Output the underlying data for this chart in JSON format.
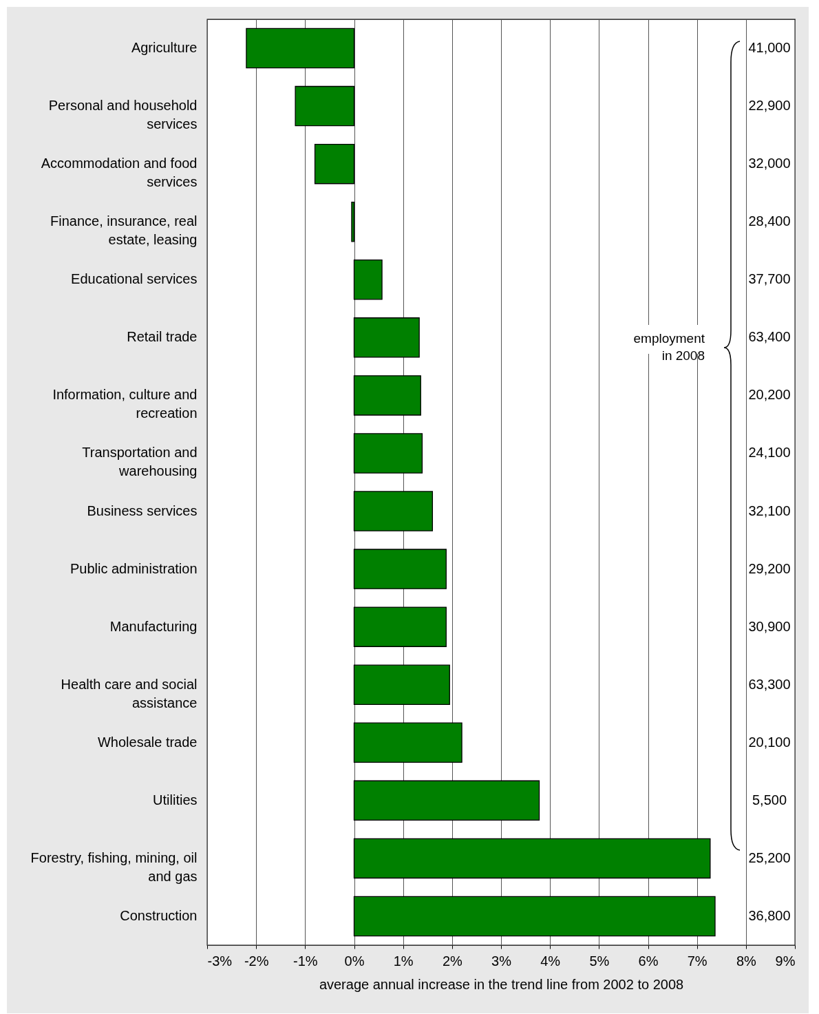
{
  "chart_data": {
    "type": "bar",
    "orientation": "horizontal",
    "xlabel": "average annual increase in the trend line from 2002 to 2008",
    "categories": [
      "Agriculture",
      "Personal and household services",
      "Accommodation and food services",
      "Finance, insurance, real estate, leasing",
      "Educational services",
      "Retail trade",
      "Information, culture and recreation",
      "Transportation and warehousing",
      "Business services",
      "Public administration",
      "Manufacturing",
      "Health care and social assistance",
      "Wholesale trade",
      "Utilities",
      "Forestry, fishing, mining, oil and gas",
      "Construction"
    ],
    "values": [
      -2.2,
      -1.2,
      -0.8,
      -0.05,
      0.57,
      1.33,
      1.36,
      1.39,
      1.6,
      1.88,
      1.88,
      1.95,
      2.2,
      3.78,
      7.27,
      7.37
    ],
    "color": "#008000",
    "xlim": [
      -3,
      9
    ],
    "xticks": [
      {
        "value": -3,
        "label": "-3%"
      },
      {
        "value": -2,
        "label": "-2%"
      },
      {
        "value": -1,
        "label": "-1%"
      },
      {
        "value": 0,
        "label": "0%"
      },
      {
        "value": 1,
        "label": "1%"
      },
      {
        "value": 2,
        "label": "2%"
      },
      {
        "value": 3,
        "label": "3%"
      },
      {
        "value": 4,
        "label": "4%"
      },
      {
        "value": 5,
        "label": "5%"
      },
      {
        "value": 6,
        "label": "6%"
      },
      {
        "value": 7,
        "label": "7%"
      },
      {
        "value": 8,
        "label": "8%"
      },
      {
        "value": 9,
        "label": "9%"
      }
    ],
    "grid": "x",
    "annotations": [
      "41,000",
      "22,900",
      "32,000",
      "28,400",
      "37,700",
      "63,400",
      "20,200",
      "24,100",
      "32,100",
      "29,200",
      "30,900",
      "63,300",
      "20,100",
      "5,500",
      "25,200",
      "36,800",
      "employment in 2008"
    ]
  }
}
